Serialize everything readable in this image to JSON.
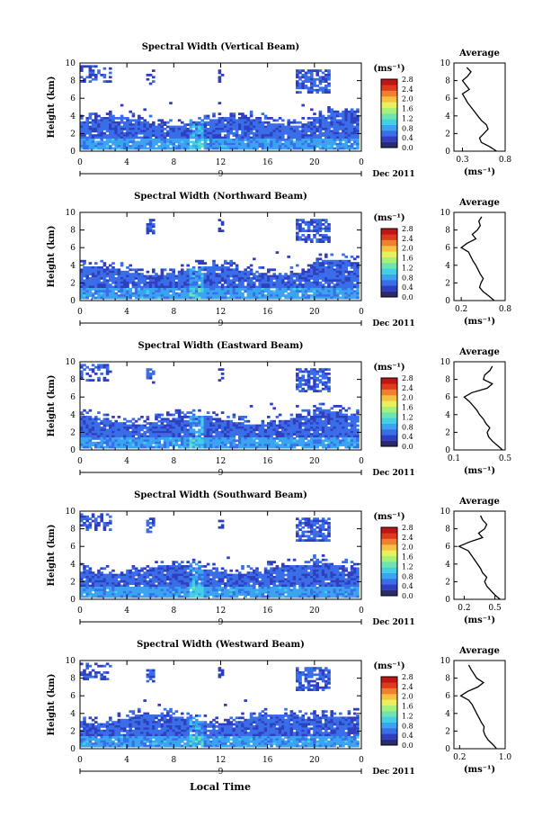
{
  "x_axis_label": "Local Time",
  "units_label": "(ms⁻¹)",
  "avg_title": "Average",
  "avg_units": "(ms⁻¹)",
  "ylabel": "Height (km)",
  "month_label": "Dec 2011",
  "day_label": "9",
  "colorbar_ticks": [
    "2.8",
    "2.4",
    "2.0",
    "1.6",
    "1.2",
    "0.8",
    "0.4",
    "0.0"
  ],
  "colors": {
    "colormap": [
      "#2b2a6e",
      "#2f3fbf",
      "#3a6ee8",
      "#3aa4f0",
      "#43d0e6",
      "#6fe3b0",
      "#a9f07a",
      "#e8f05a",
      "#f5c044",
      "#f0802e",
      "#e03a1e",
      "#c01515"
    ],
    "no_data": "#ffffff"
  },
  "chart_data": [
    {
      "type": "heatmap",
      "title": "Spectral Width (Vertical Beam)",
      "xlabel": "",
      "ylabel": "Height (km)",
      "xlim": [
        0,
        24
      ],
      "ylim": [
        0,
        10
      ],
      "x_ticks": [
        "0",
        "4",
        "8",
        "12",
        "16",
        "20",
        "0"
      ],
      "y_ticks": [
        "0",
        "2",
        "4",
        "6",
        "8",
        "10"
      ],
      "colorbar": {
        "label": "(ms⁻¹)",
        "range": [
          0.0,
          2.8
        ]
      },
      "average_profile": {
        "title": "Average",
        "xlabel": "(ms⁻¹)",
        "x_ticks": [
          "0.3",
          "0.8"
        ],
        "xlim": [
          0.2,
          0.8
        ],
        "height": [
          0,
          0.5,
          1,
          1.5,
          2,
          2.5,
          3,
          3.5,
          4,
          4.5,
          5,
          5.5,
          6,
          6.5,
          7,
          7.5,
          8,
          8.5,
          9,
          9.5
        ],
        "value": [
          0.7,
          0.62,
          0.52,
          0.5,
          0.55,
          0.6,
          0.58,
          0.52,
          0.48,
          0.44,
          0.4,
          0.36,
          0.33,
          0.3,
          0.38,
          0.34,
          0.3,
          0.36,
          0.4,
          0.35
        ]
      }
    },
    {
      "type": "heatmap",
      "title": "Spectral Width (Northward Beam)",
      "xlabel": "",
      "ylabel": "Height (km)",
      "xlim": [
        0,
        24
      ],
      "ylim": [
        0,
        10
      ],
      "x_ticks": [
        "0",
        "4",
        "8",
        "12",
        "16",
        "20",
        "0"
      ],
      "y_ticks": [
        "0",
        "2",
        "4",
        "6",
        "8",
        "10"
      ],
      "colorbar": {
        "label": "(ms⁻¹)",
        "range": [
          0.0,
          2.8
        ]
      },
      "average_profile": {
        "title": "Average",
        "xlabel": "(ms⁻¹)",
        "x_ticks": [
          "0.2",
          "0.8"
        ],
        "xlim": [
          0.1,
          0.8
        ],
        "height": [
          0,
          0.5,
          1,
          1.5,
          2,
          2.5,
          3,
          3.5,
          4,
          4.5,
          5,
          5.5,
          6,
          6.5,
          7,
          7.5,
          8,
          8.5,
          9,
          9.5
        ],
        "value": [
          0.65,
          0.58,
          0.5,
          0.45,
          0.47,
          0.5,
          0.46,
          0.43,
          0.4,
          0.36,
          0.33,
          0.3,
          0.2,
          0.28,
          0.4,
          0.35,
          0.42,
          0.46,
          0.44,
          0.48
        ]
      }
    },
    {
      "type": "heatmap",
      "title": "Spectral Width (Eastward Beam)",
      "xlabel": "",
      "ylabel": "Height (km)",
      "xlim": [
        0,
        24
      ],
      "ylim": [
        0,
        10
      ],
      "x_ticks": [
        "0",
        "4",
        "8",
        "12",
        "16",
        "20",
        "0"
      ],
      "y_ticks": [
        "0",
        "2",
        "4",
        "6",
        "8",
        "10"
      ],
      "colorbar": {
        "label": "(ms⁻¹)",
        "range": [
          0.0,
          2.8
        ]
      },
      "average_profile": {
        "title": "Average",
        "xlabel": "(ms⁻¹)",
        "x_ticks": [
          "0.1",
          "0.5"
        ],
        "xlim": [
          0.1,
          0.5
        ],
        "height": [
          0,
          0.5,
          1,
          1.5,
          2,
          2.5,
          3,
          3.5,
          4,
          4.5,
          5,
          5.5,
          6,
          6.5,
          7,
          7.5,
          8,
          8.5,
          9,
          9.5
        ],
        "value": [
          0.48,
          0.44,
          0.4,
          0.37,
          0.36,
          0.38,
          0.35,
          0.33,
          0.3,
          0.28,
          0.25,
          0.22,
          0.18,
          0.24,
          0.36,
          0.4,
          0.33,
          0.34,
          0.38,
          0.4
        ]
      }
    },
    {
      "type": "heatmap",
      "title": "Spectral Width (Southward Beam)",
      "xlabel": "",
      "ylabel": "Height (km)",
      "xlim": [
        0,
        24
      ],
      "ylim": [
        0,
        10
      ],
      "x_ticks": [
        "0",
        "4",
        "8",
        "12",
        "16",
        "20",
        "0"
      ],
      "y_ticks": [
        "0",
        "2",
        "4",
        "6",
        "8",
        "10"
      ],
      "colorbar": {
        "label": "(ms⁻¹)",
        "range": [
          0.0,
          2.8
        ]
      },
      "average_profile": {
        "title": "Average",
        "xlabel": "(ms⁻¹)",
        "x_ticks": [
          "0.2",
          "0.5"
        ],
        "xlim": [
          0.1,
          0.6
        ],
        "height": [
          0,
          0.5,
          1,
          1.5,
          2,
          2.5,
          3,
          3.5,
          4,
          4.5,
          5,
          5.5,
          6,
          6.5,
          7,
          7.5,
          8,
          8.5,
          9,
          9.5
        ],
        "value": [
          0.55,
          0.5,
          0.46,
          0.42,
          0.4,
          0.42,
          0.38,
          0.36,
          0.33,
          0.3,
          0.27,
          0.24,
          0.15,
          0.25,
          0.38,
          0.34,
          0.4,
          0.42,
          0.38,
          0.36
        ]
      }
    },
    {
      "type": "heatmap",
      "title": "Spectral Width (Westward Beam)",
      "xlabel": "Local Time",
      "ylabel": "Height (km)",
      "xlim": [
        0,
        24
      ],
      "ylim": [
        0,
        10
      ],
      "x_ticks": [
        "0",
        "4",
        "8",
        "12",
        "16",
        "20",
        "0"
      ],
      "y_ticks": [
        "0",
        "2",
        "4",
        "6",
        "8",
        "10"
      ],
      "colorbar": {
        "label": "(ms⁻¹)",
        "range": [
          0.0,
          2.8
        ]
      },
      "average_profile": {
        "title": "Average",
        "xlabel": "(ms⁻¹)",
        "x_ticks": [
          "0.2",
          "1.0"
        ],
        "xlim": [
          0.1,
          1.0
        ],
        "height": [
          0,
          0.5,
          1,
          1.5,
          2,
          2.5,
          3,
          3.5,
          4,
          4.5,
          5,
          5.5,
          6,
          6.5,
          7,
          7.5,
          8,
          8.5,
          9,
          9.5
        ],
        "value": [
          0.85,
          0.78,
          0.7,
          0.65,
          0.62,
          0.63,
          0.58,
          0.54,
          0.5,
          0.46,
          0.42,
          0.36,
          0.22,
          0.34,
          0.52,
          0.62,
          0.5,
          0.45,
          0.4,
          0.36
        ]
      }
    }
  ]
}
